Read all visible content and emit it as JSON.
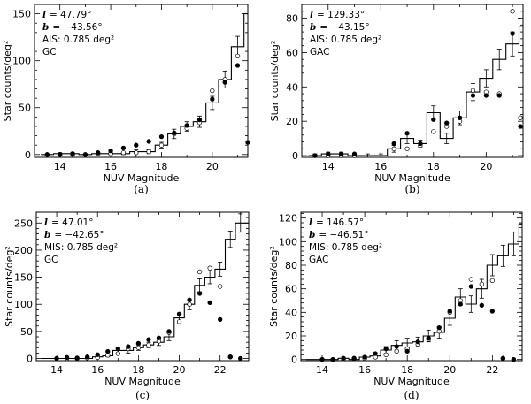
{
  "chart_data": [
    {
      "id": "a",
      "type": "bar",
      "caption": "(a)",
      "xlabel": "NUV Magnitude",
      "ylabel": "Star counts/deg²",
      "xlim": [
        13.0,
        21.4
      ],
      "ylim": [
        -3,
        160
      ],
      "xticks": [
        14,
        16,
        18,
        20
      ],
      "yticks": [
        0,
        50,
        100,
        150
      ],
      "annotations": {
        "l_symbol": "l",
        "l_value": "= 47.79°",
        "b_symbol": "b",
        "b_value": "= −43.56°",
        "survey": "AIS: 0.785 deg²",
        "type": "GC"
      },
      "histogram": {
        "edges": [
          13.25,
          13.75,
          14.25,
          14.75,
          15.25,
          15.75,
          16.25,
          16.75,
          17.25,
          17.75,
          18.25,
          18.75,
          19.25,
          19.75,
          20.25,
          20.75,
          21.25
        ],
        "counts": [
          0,
          1,
          1,
          0,
          1,
          1,
          1,
          3,
          3,
          10,
          22,
          30,
          35,
          55,
          80,
          115,
          150
        ],
        "errors": [
          0,
          1,
          1,
          0,
          1,
          1,
          1,
          2,
          2,
          3,
          5,
          5,
          6,
          7,
          9,
          11,
          12
        ]
      },
      "filled_points": {
        "x": [
          13.5,
          14,
          14.5,
          15,
          15.5,
          16,
          16.5,
          17,
          17.5,
          18,
          18.5,
          19,
          19.5,
          20,
          20.5,
          21,
          21.4
        ],
        "y": [
          0,
          0,
          1,
          0,
          2,
          4,
          7,
          10,
          14,
          19,
          23,
          31,
          37,
          59,
          77,
          95,
          13
        ]
      },
      "open_points": {
        "x": [
          13.5,
          14,
          14.5,
          15,
          15.5,
          16,
          16.5,
          17,
          17.5,
          18,
          18.5,
          19,
          19.5,
          20,
          20.5,
          21,
          21.4
        ],
        "y": [
          0,
          0,
          0,
          0,
          1,
          1,
          2,
          2,
          3,
          10,
          22,
          28,
          34,
          68,
          80,
          105,
          13
        ]
      }
    },
    {
      "id": "b",
      "type": "bar",
      "caption": "(b)",
      "xlabel": "NUV Magnitude",
      "ylabel": "Star counts/deg²",
      "xlim": [
        13.0,
        21.4
      ],
      "ylim": [
        -1,
        88
      ],
      "xticks": [
        14,
        16,
        18,
        20
      ],
      "yticks": [
        0,
        20,
        40,
        60,
        80
      ],
      "annotations": {
        "l_symbol": "l",
        "l_value": "= 129.33°",
        "b_symbol": "b",
        "b_value": "= −43.15°",
        "survey": "AIS: 0.785 deg²",
        "type": "GAC"
      },
      "histogram": {
        "edges": [
          13.25,
          13.75,
          14.25,
          14.75,
          15.25,
          15.75,
          16.25,
          16.75,
          17.25,
          17.75,
          18.25,
          18.75,
          19.25,
          19.75,
          20.25,
          20.75,
          21.25
        ],
        "counts": [
          0,
          1,
          1,
          0,
          0,
          0,
          4,
          10,
          7,
          25,
          10,
          22,
          37,
          45,
          56,
          65,
          75
        ],
        "errors": [
          1,
          1,
          1,
          1,
          1,
          1,
          2,
          3,
          2,
          4,
          3,
          4,
          5,
          5,
          6,
          7,
          8
        ]
      },
      "filled_points": {
        "x": [
          13.5,
          14,
          14.5,
          15,
          16.5,
          17,
          17.5,
          18,
          18.5,
          19,
          19.5,
          20,
          20.5,
          21,
          21.3
        ],
        "y": [
          0,
          1,
          1,
          1,
          7,
          13,
          7,
          21,
          19,
          22,
          35,
          35,
          35,
          71,
          17
        ]
      },
      "open_points": {
        "x": [
          13.5,
          14,
          14.5,
          15,
          16.5,
          17,
          17.5,
          18,
          18.5,
          19,
          19.5,
          20,
          20.5,
          21,
          21.3
        ],
        "y": [
          0,
          0,
          0,
          0,
          4,
          4,
          6,
          14,
          17,
          20,
          38,
          37,
          36,
          84,
          22
        ]
      }
    },
    {
      "id": "c",
      "type": "bar",
      "caption": "(c)",
      "xlabel": "NUV Magnitude",
      "ylabel": "Star counts/deg²",
      "xlim": [
        13.0,
        23.4
      ],
      "ylim": [
        -4,
        270
      ],
      "xticks": [
        14,
        16,
        18,
        20,
        22
      ],
      "yticks": [
        0,
        50,
        100,
        150,
        200,
        250
      ],
      "annotations": {
        "l_symbol": "l",
        "l_value": "= 47.01°",
        "b_symbol": "b",
        "b_value": "= −42.65°",
        "survey": "MIS: 0.785 deg²",
        "type": "GC"
      },
      "histogram": {
        "edges": [
          13.25,
          13.75,
          14.25,
          14.75,
          15.25,
          15.75,
          16.25,
          16.75,
          17.25,
          17.75,
          18.25,
          18.75,
          19.25,
          19.75,
          20.25,
          20.75,
          21.25,
          21.75,
          22.25,
          22.75,
          23.25
        ],
        "counts": [
          0,
          0,
          0,
          0,
          0,
          3,
          5,
          15,
          15,
          20,
          25,
          30,
          40,
          75,
          100,
          135,
          150,
          165,
          220,
          250,
          250
        ],
        "errors": [
          0,
          0,
          0,
          0,
          0,
          2,
          2,
          5,
          5,
          5,
          5,
          6,
          7,
          9,
          10,
          12,
          12,
          13,
          15,
          17,
          17
        ]
      },
      "filled_points": {
        "x": [
          14,
          14.5,
          15,
          15.5,
          16,
          16.5,
          17,
          17.5,
          18,
          18.5,
          19,
          19.5,
          20,
          20.5,
          21,
          21.5,
          22,
          22.5,
          23
        ],
        "y": [
          0,
          2,
          1,
          3,
          7,
          13,
          18,
          22,
          28,
          35,
          38,
          50,
          82,
          108,
          120,
          103,
          72,
          3,
          0
        ]
      },
      "open_points": {
        "x": [
          14,
          14.5,
          15,
          15.5,
          16,
          16.5,
          17,
          17.5,
          18,
          18.5,
          19,
          19.5,
          20,
          20.5,
          21,
          21.5,
          22,
          22.5,
          23
        ],
        "y": [
          0,
          0,
          0,
          1,
          2,
          6,
          9,
          18,
          20,
          25,
          32,
          48,
          68,
          100,
          160,
          167,
          133,
          3,
          0
        ]
      }
    },
    {
      "id": "d",
      "type": "bar",
      "caption": "(d)",
      "xlabel": "NUV Magnitude",
      "ylabel": "Star counts/deg²",
      "xlim": [
        13.0,
        23.4
      ],
      "ylim": [
        -1,
        125
      ],
      "xticks": [
        14,
        16,
        18,
        20,
        22
      ],
      "yticks": [
        0,
        20,
        40,
        60,
        80,
        100,
        120
      ],
      "annotations": {
        "l_symbol": "l",
        "l_value": "= 146.57°",
        "b_symbol": "b",
        "b_value": "= −46.51°",
        "survey": "MIS: 0.785 deg²",
        "type": "GAC"
      },
      "histogram": {
        "edges": [
          13.25,
          13.75,
          14.25,
          14.75,
          15.25,
          15.75,
          16.25,
          16.75,
          17.25,
          17.75,
          18.25,
          18.75,
          19.25,
          19.75,
          20.25,
          20.75,
          21.25,
          21.75,
          22.25,
          22.75,
          23.25
        ],
        "counts": [
          0,
          0,
          0,
          1,
          0,
          2,
          3,
          8,
          12,
          14,
          15,
          20,
          23,
          35,
          53,
          47,
          60,
          80,
          88,
          98,
          115
        ],
        "errors": [
          0,
          0,
          0,
          1,
          0,
          1,
          2,
          3,
          4,
          4,
          4,
          5,
          5,
          6,
          7,
          7,
          8,
          9,
          9,
          10,
          11
        ]
      },
      "filled_points": {
        "x": [
          14,
          14.5,
          15,
          15.5,
          16,
          16.5,
          17,
          17.5,
          18,
          18.5,
          19,
          19.5,
          20,
          20.5,
          21,
          21.5,
          22,
          22.5,
          23
        ],
        "y": [
          0,
          0,
          1,
          1,
          2,
          5,
          9,
          11,
          7,
          15,
          18,
          27,
          41,
          47,
          62,
          46,
          41,
          1,
          0
        ]
      },
      "open_points": {
        "x": [
          14,
          14.5,
          15,
          15.5,
          16,
          16.5,
          17,
          17.5,
          18,
          18.5,
          19,
          19.5,
          20,
          20.5,
          21,
          21.5,
          22,
          22.5,
          23
        ],
        "y": [
          0,
          0,
          0,
          1,
          1,
          2,
          4,
          7,
          9,
          13,
          17,
          24,
          40,
          50,
          68,
          64,
          67,
          1,
          0
        ]
      }
    }
  ]
}
